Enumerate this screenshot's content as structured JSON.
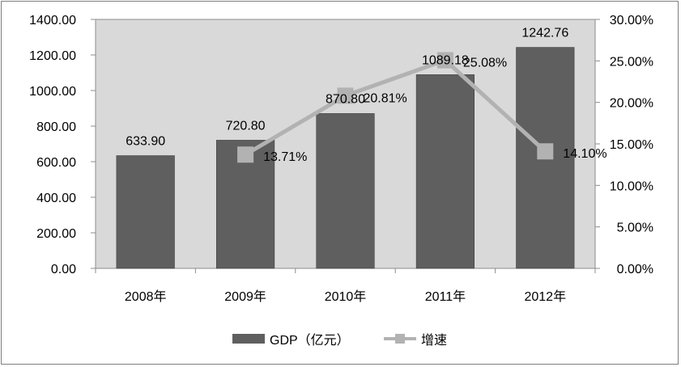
{
  "chart_data": {
    "type": "bar",
    "categories": [
      "2008年",
      "2009年",
      "2010年",
      "2011年",
      "2012年"
    ],
    "series": [
      {
        "name": "GDP（亿元）",
        "type": "bar",
        "axis": "left",
        "values": [
          633.9,
          720.8,
          870.8,
          1089.18,
          1242.76
        ],
        "labels": [
          "633.90",
          "720.80",
          "870.80",
          "1089.18",
          "1242.76"
        ],
        "color": "#5f5f5f"
      },
      {
        "name": "增速",
        "type": "line",
        "axis": "right",
        "values": [
          null,
          13.71,
          20.81,
          25.08,
          14.1
        ],
        "labels": [
          "",
          "13.71%",
          "20.81%",
          "25.08%",
          "14.10%"
        ],
        "color": "#b2b2b2"
      }
    ],
    "y_left": {
      "min": 0,
      "max": 1400,
      "ticks": [
        "0.00",
        "200.00",
        "400.00",
        "600.00",
        "800.00",
        "1000.00",
        "1200.00",
        "1400.00"
      ]
    },
    "y_right": {
      "min": 0,
      "max": 30,
      "ticks": [
        "0.00%",
        "5.00%",
        "10.00%",
        "15.00%",
        "20.00%",
        "25.00%",
        "30.00%"
      ]
    },
    "plot_background": "#d9d9d9",
    "legend_position": "bottom",
    "legend": [
      "GDP（亿元）",
      "增速"
    ],
    "grid": false
  }
}
